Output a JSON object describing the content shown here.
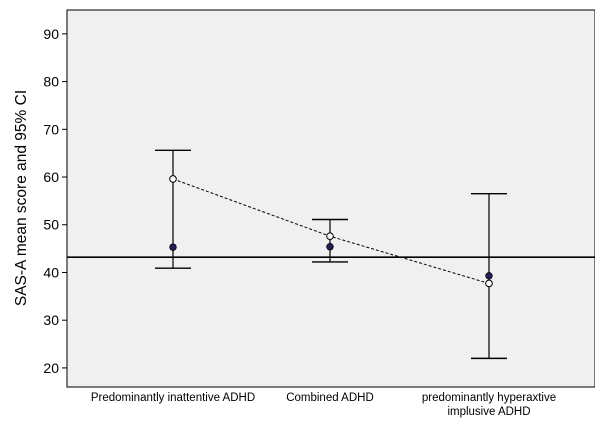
{
  "chart_data": {
    "type": "errorbar",
    "xlabel": "",
    "ylabel": "SAS-A mean score and 95% CI",
    "ylim": [
      16,
      95
    ],
    "yticks": [
      20,
      30,
      40,
      50,
      60,
      70,
      80,
      90
    ],
    "categories": [
      [
        "Predominantly inattentive ADHD"
      ],
      [
        "Combined ADHD"
      ],
      [
        "predominantly hyperaxtive",
        "implusive ADHD"
      ]
    ],
    "mean": [
      59.6,
      47.6,
      37.7
    ],
    "ci_lower": [
      40.9,
      42.2,
      22.0
    ],
    "ci_upper": [
      65.6,
      51.1,
      56.5
    ],
    "filled_points": [
      45.3,
      45.4,
      39.3
    ],
    "reference_line": 43.2,
    "colors": {
      "plot_background": "#f0f0f0",
      "filled_point": "#1f1f5c",
      "open_point": "#ffffff",
      "line": "#000000"
    }
  }
}
